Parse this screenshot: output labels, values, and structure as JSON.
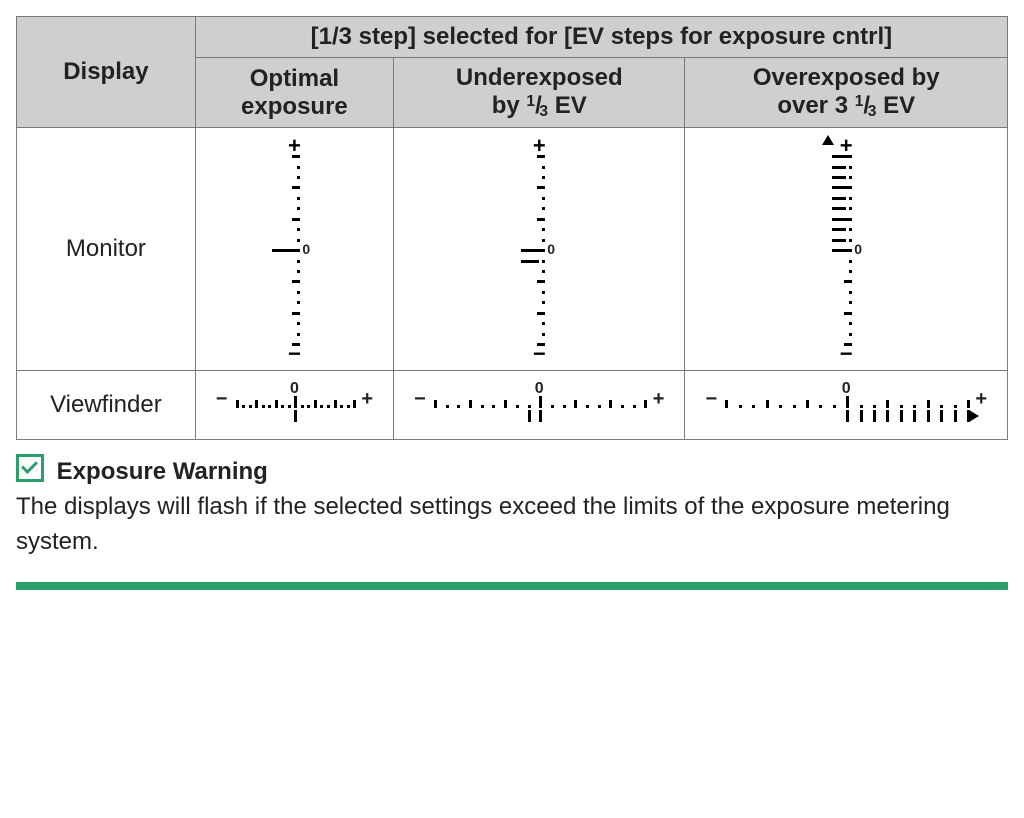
{
  "colors": {
    "border": "#7a7a7a",
    "header_bg": "#cfcfcf",
    "accent": "#2e9e6b",
    "ink": "#000000"
  },
  "table": {
    "row_header": "Display",
    "top_header": "[1/3 step] selected for [EV steps for exposure cntrl]",
    "col_headers": {
      "optimal": {
        "line1": "Optimal",
        "line2": "exposure"
      },
      "under": {
        "line1": "Underexposed",
        "line2_prefix": "by ",
        "num": "1",
        "den": "3",
        "line2_suffix": " EV"
      },
      "over": {
        "line1": "Overexposed by",
        "line2_prefix": "over 3 ",
        "num": "1",
        "den": "3",
        "line2_suffix": " EV"
      }
    },
    "rows": {
      "monitor": "Monitor",
      "viewfinder": "Viewfinder"
    }
  },
  "monitor_scales": {
    "n_ticks": 19,
    "major_every": 3,
    "optimal": {
      "marks": [
        {
          "index": 9,
          "len": 22
        }
      ],
      "arrow_up": false
    },
    "under": {
      "marks": [
        {
          "index": 9,
          "len": 18
        },
        {
          "index": 10,
          "len": 18
        }
      ],
      "arrow_up": false
    },
    "over": {
      "marks": [
        {
          "index": 0,
          "len": 14
        },
        {
          "index": 1,
          "len": 14
        },
        {
          "index": 2,
          "len": 14
        },
        {
          "index": 3,
          "len": 14
        },
        {
          "index": 4,
          "len": 14
        },
        {
          "index": 5,
          "len": 14
        },
        {
          "index": 6,
          "len": 14
        },
        {
          "index": 7,
          "len": 14
        },
        {
          "index": 8,
          "len": 14
        },
        {
          "index": 9,
          "len": 14
        }
      ],
      "arrow_up": true
    }
  },
  "viewfinder_scales": {
    "n_ticks": 19,
    "major_every": 3,
    "optimal": {
      "marks": [
        {
          "index": 9
        }
      ],
      "arrow_right": false
    },
    "under": {
      "marks": [
        {
          "index": 8
        },
        {
          "index": 9
        }
      ],
      "arrow_right": false
    },
    "over": {
      "marks": [
        {
          "index": 9
        },
        {
          "index": 10
        },
        {
          "index": 11
        },
        {
          "index": 12
        },
        {
          "index": 13
        },
        {
          "index": 14
        },
        {
          "index": 15
        },
        {
          "index": 16
        },
        {
          "index": 17
        },
        {
          "index": 18
        }
      ],
      "arrow_right": true
    }
  },
  "warning": {
    "title": "Exposure Warning",
    "body": "The displays will flash if the selected settings exceed the limits of the exposure metering system."
  }
}
